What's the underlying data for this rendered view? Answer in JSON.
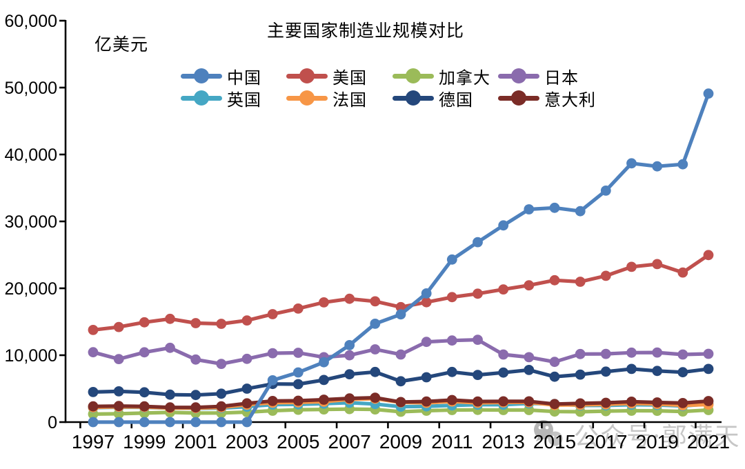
{
  "chart_data": {
    "type": "line",
    "title": "主要国家制造业规模对比",
    "ylabel": "亿美元",
    "xlabel": "",
    "ylim": [
      0,
      60000
    ],
    "grid": false,
    "legend_position": "top-center-two-rows",
    "marker": "circle",
    "x": [
      1997,
      1998,
      1999,
      2000,
      2001,
      2002,
      2003,
      2004,
      2005,
      2006,
      2007,
      2008,
      2009,
      2010,
      2011,
      2012,
      2013,
      2014,
      2015,
      2016,
      2017,
      2018,
      2019,
      2020,
      2021
    ],
    "x_tick_labels": [
      "1997",
      "1999",
      "2001",
      "2003",
      "2005",
      "2007",
      "2009",
      "2011",
      "2013",
      "2015",
      "2017",
      "2019",
      "2021"
    ],
    "y_ticks": [
      0,
      10000,
      20000,
      30000,
      40000,
      50000,
      60000
    ],
    "y_tick_labels": [
      "0",
      "10,000",
      "20,000",
      "30,000",
      "40,000",
      "50,000",
      "60,000"
    ],
    "draw_order": [
      2,
      4,
      5,
      7,
      6,
      3,
      1,
      0
    ],
    "series": [
      {
        "key": "china",
        "name": "中国",
        "color": "#4E81BD",
        "values": [
          0,
          0,
          0,
          0,
          0,
          0,
          0,
          6250,
          7420,
          8950,
          11500,
          14700,
          16100,
          19240,
          24300,
          26900,
          29400,
          31800,
          32030,
          31530,
          34600,
          38680,
          38230,
          38540,
          49100
        ]
      },
      {
        "key": "usa",
        "name": "美国",
        "color": "#C0504D",
        "values": [
          13770,
          14220,
          14920,
          15430,
          14790,
          14690,
          15200,
          16130,
          16970,
          17900,
          18430,
          18050,
          17190,
          17920,
          18680,
          19200,
          19830,
          20440,
          21210,
          20980,
          21870,
          23210,
          23620,
          22360,
          24970
        ]
      },
      {
        "key": "canada",
        "name": "加拿大",
        "color": "#9BBB59",
        "values": [
          1200,
          1250,
          1350,
          1450,
          1350,
          1360,
          1500,
          1700,
          1850,
          1900,
          1950,
          1900,
          1550,
          1700,
          1800,
          1820,
          1800,
          1800,
          1580,
          1550,
          1640,
          1700,
          1690,
          1590,
          1800
        ]
      },
      {
        "key": "japan",
        "name": "日本",
        "color": "#8A6BAD",
        "values": [
          10440,
          9420,
          10430,
          11100,
          9350,
          8700,
          9450,
          10300,
          10360,
          9700,
          9990,
          10880,
          10100,
          11990,
          12200,
          12310,
          10100,
          9700,
          9000,
          10180,
          10200,
          10380,
          10400,
          10100,
          10210
        ]
      },
      {
        "key": "uk",
        "name": "英国",
        "color": "#45A7C4",
        "values": [
          2150,
          2230,
          2200,
          2100,
          2050,
          2100,
          2300,
          2620,
          2650,
          2750,
          2900,
          2700,
          2300,
          2350,
          2500,
          2600,
          2600,
          2790,
          2700,
          2480,
          2500,
          2600,
          2560,
          2400,
          2700
        ]
      },
      {
        "key": "france",
        "name": "法国",
        "color": "#F79646",
        "values": [
          2200,
          2280,
          2250,
          2100,
          2080,
          2200,
          2600,
          2900,
          2950,
          3050,
          3400,
          3500,
          2950,
          2880,
          3080,
          2880,
          2950,
          2950,
          2550,
          2580,
          2650,
          2790,
          2700,
          2500,
          2620
        ]
      },
      {
        "key": "germany",
        "name": "德国",
        "color": "#24477B",
        "values": [
          4500,
          4600,
          4450,
          4100,
          4050,
          4250,
          5000,
          5700,
          5670,
          6300,
          7150,
          7500,
          6100,
          6700,
          7500,
          7050,
          7400,
          7790,
          6780,
          7100,
          7550,
          7950,
          7650,
          7450,
          7950
        ]
      },
      {
        "key": "italy",
        "name": "意大利",
        "color": "#7B2C27",
        "values": [
          2350,
          2400,
          2350,
          2200,
          2200,
          2350,
          2800,
          3150,
          3200,
          3350,
          3550,
          3650,
          3000,
          3080,
          3300,
          3080,
          3100,
          3100,
          2700,
          2790,
          2890,
          3050,
          2940,
          2850,
          3140
        ]
      }
    ]
  },
  "watermark": {
    "text": "公众号·郭满天",
    "icon": "wechat-icon"
  }
}
